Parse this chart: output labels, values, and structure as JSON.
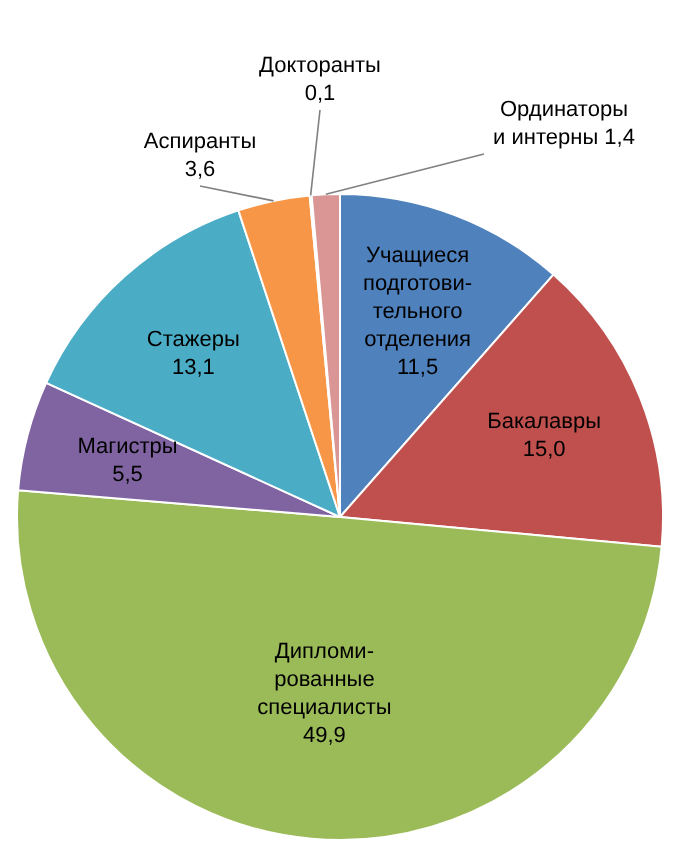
{
  "chart_data": {
    "type": "pie",
    "categories": [
      "Учащиеся подготови-тельного отделения",
      "Бакалавры",
      "Дипломи-рованные специалисты",
      "Магистры",
      "Стажеры",
      "Аспиранты",
      "Докторанты",
      "Ординаторы и интерны"
    ],
    "values": [
      11.5,
      15.0,
      49.9,
      5.5,
      13.1,
      3.6,
      0.1,
      1.4
    ],
    "value_labels": [
      "11,5",
      "15,0",
      "49,9",
      "5,5",
      "13,1",
      "3,6",
      "0,1",
      "1,4"
    ],
    "colors": [
      "#4f81bd",
      "#c0504d",
      "#9bbb59",
      "#8064a2",
      "#4bacc6",
      "#f79646",
      "#2c4d75",
      "#d99694"
    ],
    "legend": false
  }
}
